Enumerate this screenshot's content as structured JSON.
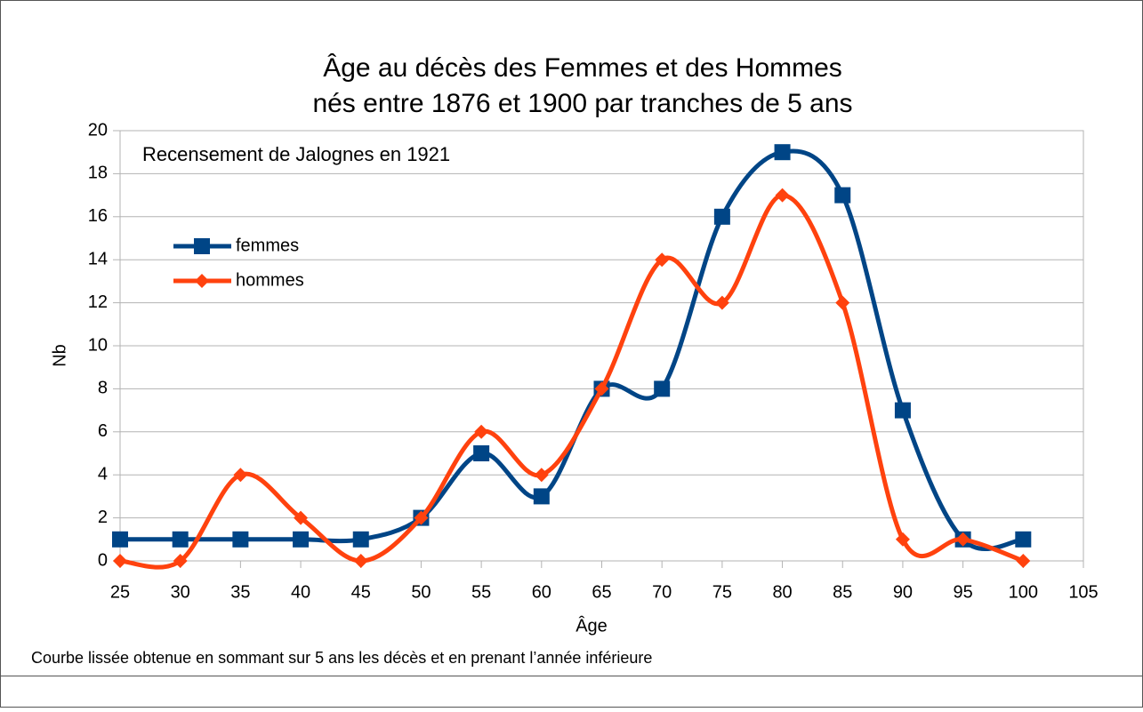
{
  "chart_data": {
    "type": "line",
    "title": [
      "Âge au décès des Femmes et des Hommes",
      "nés entre 1876 et 1900 par tranches de 5 ans"
    ],
    "annotation": "Recensement de Jalognes en 1921",
    "x_label": "Âge",
    "y_label": "Nb",
    "footnote": "Courbe lissée obtenue en sommant sur 5 ans les décès et en prenant l’année inférieure",
    "x": [
      25,
      30,
      35,
      40,
      45,
      50,
      55,
      60,
      65,
      70,
      75,
      80,
      85,
      90,
      95,
      100
    ],
    "series": [
      {
        "name": "femmes",
        "color": "#004586",
        "marker": "square",
        "values": [
          1,
          1,
          1,
          1,
          1,
          2,
          5,
          3,
          8,
          8,
          16,
          19,
          17,
          7,
          1,
          1
        ]
      },
      {
        "name": "hommes",
        "color": "#ff420e",
        "marker": "diamond",
        "values": [
          0,
          0,
          4,
          2,
          0,
          2,
          6,
          4,
          8,
          14,
          12,
          17,
          12,
          1,
          1,
          0
        ]
      }
    ],
    "xlim": [
      25,
      105
    ],
    "xticks": [
      25,
      30,
      35,
      40,
      45,
      50,
      55,
      60,
      65,
      70,
      75,
      80,
      85,
      90,
      95,
      100,
      105
    ],
    "ylim": [
      0,
      20
    ],
    "yticks": [
      0,
      2,
      4,
      6,
      8,
      10,
      12,
      14,
      16,
      18,
      20
    ],
    "grid": true,
    "smooth": true
  }
}
